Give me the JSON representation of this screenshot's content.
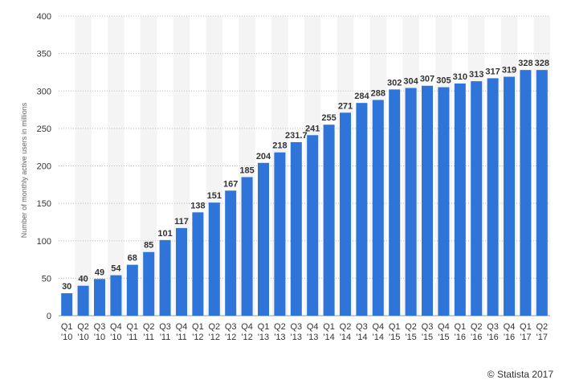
{
  "chart_data": {
    "type": "bar",
    "ylabel": "Number of monthly active users in millions",
    "ylim": [
      0,
      400
    ],
    "yticks": [
      0,
      50,
      100,
      150,
      200,
      250,
      300,
      350,
      400
    ],
    "grid": true,
    "bar_color": "#2f74d9",
    "categories": [
      [
        "Q1",
        "'10"
      ],
      [
        "Q2",
        "'10"
      ],
      [
        "Q3",
        "'10"
      ],
      [
        "Q4",
        "'10"
      ],
      [
        "Q1",
        "'11"
      ],
      [
        "Q2",
        "'11"
      ],
      [
        "Q3",
        "'11"
      ],
      [
        "Q4",
        "'11"
      ],
      [
        "Q1",
        "'12"
      ],
      [
        "Q2",
        "'12"
      ],
      [
        "Q3",
        "'12"
      ],
      [
        "Q4",
        "'12"
      ],
      [
        "Q1",
        "'13"
      ],
      [
        "Q2",
        "'13"
      ],
      [
        "Q3",
        "'13"
      ],
      [
        "Q4",
        "'13"
      ],
      [
        "Q1",
        "'14"
      ],
      [
        "Q2",
        "'14"
      ],
      [
        "Q3",
        "'14"
      ],
      [
        "Q4",
        "'14"
      ],
      [
        "Q1",
        "'15"
      ],
      [
        "Q2",
        "'15"
      ],
      [
        "Q3",
        "'15"
      ],
      [
        "Q4",
        "'15"
      ],
      [
        "Q1",
        "'16"
      ],
      [
        "Q2",
        "'16"
      ],
      [
        "Q3",
        "'16"
      ],
      [
        "Q4",
        "'16"
      ],
      [
        "Q1",
        "'17"
      ],
      [
        "Q2",
        "'17"
      ]
    ],
    "values": [
      30,
      40,
      49,
      54,
      68,
      85,
      101,
      117,
      138,
      151,
      167,
      185,
      204,
      218,
      231.7,
      241,
      255,
      271,
      284,
      288,
      302,
      304,
      307,
      305,
      310,
      313,
      317,
      319,
      328,
      328
    ]
  },
  "copyright": "© Statista 2017"
}
